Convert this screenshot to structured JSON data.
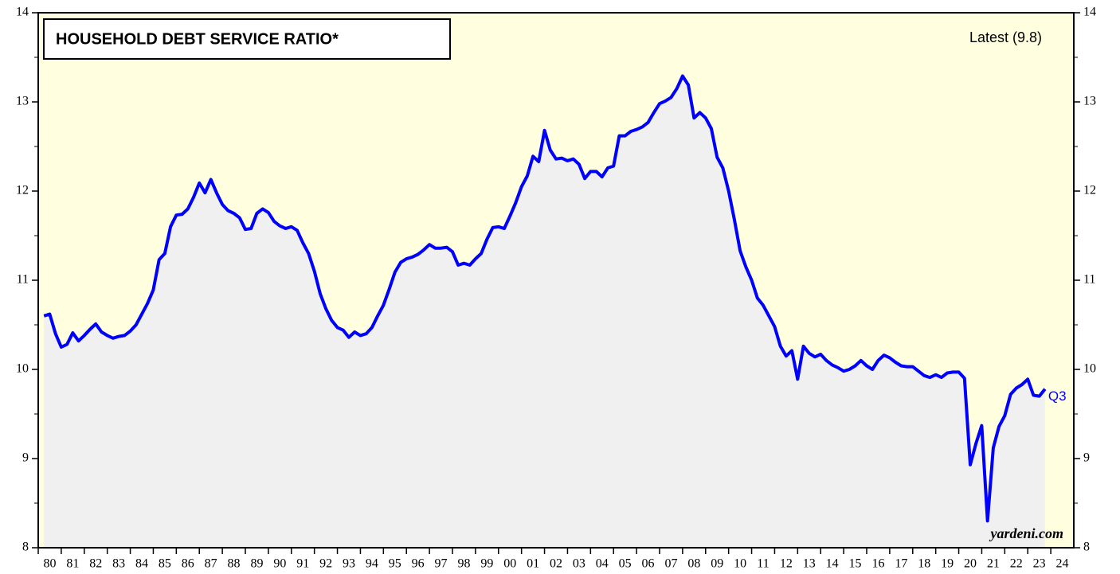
{
  "chart_data": {
    "type": "line",
    "title": "HOUSEHOLD DEBT SERVICE RATIO*",
    "annotations": {
      "latest": "Latest (9.8)",
      "end_label": "Q3",
      "source": "yardeni.com"
    },
    "x": [
      1980.25,
      1980.5,
      1980.75,
      1981,
      1981.25,
      1981.5,
      1981.75,
      1982,
      1982.25,
      1982.5,
      1982.75,
      1983,
      1983.25,
      1983.5,
      1983.75,
      1984,
      1984.25,
      1984.5,
      1984.75,
      1985,
      1985.25,
      1985.5,
      1985.75,
      1986,
      1986.25,
      1986.5,
      1986.75,
      1987,
      1987.25,
      1987.5,
      1987.75,
      1988,
      1988.25,
      1988.5,
      1988.75,
      1989,
      1989.25,
      1989.5,
      1989.75,
      1990,
      1990.25,
      1990.5,
      1990.75,
      1991,
      1991.25,
      1991.5,
      1991.75,
      1992,
      1992.25,
      1992.5,
      1992.75,
      1993,
      1993.25,
      1993.5,
      1993.75,
      1994,
      1994.25,
      1994.5,
      1994.75,
      1995,
      1995.25,
      1995.5,
      1995.75,
      1996,
      1996.25,
      1996.5,
      1996.75,
      1997,
      1997.25,
      1997.5,
      1997.75,
      1998,
      1998.25,
      1998.5,
      1998.75,
      1999,
      1999.25,
      1999.5,
      1999.75,
      2000,
      2000.25,
      2000.5,
      2000.75,
      2001,
      2001.25,
      2001.5,
      2001.75,
      2002,
      2002.25,
      2002.5,
      2002.75,
      2003,
      2003.25,
      2003.5,
      2003.75,
      2004,
      2004.25,
      2004.5,
      2004.75,
      2005,
      2005.25,
      2005.5,
      2005.75,
      2006,
      2006.25,
      2006.5,
      2006.75,
      2007,
      2007.25,
      2007.5,
      2007.75,
      2008,
      2008.25,
      2008.5,
      2008.75,
      2009,
      2009.25,
      2009.5,
      2009.75,
      2010,
      2010.25,
      2010.5,
      2010.75,
      2011,
      2011.25,
      2011.5,
      2011.75,
      2012,
      2012.25,
      2012.5,
      2012.75,
      2013,
      2013.25,
      2013.5,
      2013.75,
      2014,
      2014.25,
      2014.5,
      2014.75,
      2015,
      2015.25,
      2015.5,
      2015.75,
      2016,
      2016.25,
      2016.5,
      2016.75,
      2017,
      2017.25,
      2017.5,
      2017.75,
      2018,
      2018.25,
      2018.5,
      2018.75,
      2019,
      2019.25,
      2019.5,
      2019.75,
      2020,
      2020.25,
      2020.5,
      2020.75,
      2021,
      2021.25,
      2021.5,
      2021.75,
      2022,
      2022.25,
      2022.5,
      2022.75,
      2023,
      2023.25,
      2023.5,
      2023.75
    ],
    "series": [
      {
        "color": "#0000ff",
        "values": [
          10.6,
          10.62,
          10.4,
          10.25,
          10.28,
          10.41,
          10.32,
          10.38,
          10.45,
          10.51,
          10.42,
          10.38,
          10.35,
          10.37,
          10.38,
          10.43,
          10.5,
          10.62,
          10.74,
          10.89,
          11.23,
          11.3,
          11.6,
          11.73,
          11.74,
          11.8,
          11.93,
          12.09,
          11.98,
          12.13,
          11.98,
          11.85,
          11.78,
          11.75,
          11.7,
          11.57,
          11.58,
          11.75,
          11.8,
          11.76,
          11.66,
          11.61,
          11.58,
          11.6,
          11.56,
          11.42,
          11.3,
          11.1,
          10.85,
          10.68,
          10.55,
          10.47,
          10.44,
          10.36,
          10.42,
          10.38,
          10.4,
          10.47,
          10.6,
          10.72,
          10.9,
          11.09,
          11.2,
          11.24,
          11.26,
          11.29,
          11.34,
          11.4,
          11.36,
          11.36,
          11.37,
          11.32,
          11.17,
          11.19,
          11.17,
          11.24,
          11.3,
          11.46,
          11.59,
          11.6,
          11.58,
          11.72,
          11.87,
          12.05,
          12.17,
          12.39,
          12.33,
          12.68,
          12.46,
          12.36,
          12.37,
          12.34,
          12.36,
          12.3,
          12.14,
          12.22,
          12.22,
          12.16,
          12.26,
          12.28,
          12.62,
          12.62,
          12.67,
          12.69,
          12.72,
          12.77,
          12.88,
          12.98,
          13.01,
          13.05,
          13.15,
          13.29,
          13.19,
          12.82,
          12.88,
          12.82,
          12.7,
          12.38,
          12.26,
          12.0,
          11.68,
          11.33,
          11.15,
          11.0,
          10.8,
          10.72,
          10.6,
          10.48,
          10.26,
          10.15,
          10.21,
          9.89,
          10.26,
          10.18,
          10.14,
          10.17,
          10.1,
          10.05,
          10.02,
          9.98,
          10.0,
          10.04,
          10.1,
          10.04,
          10.0,
          10.1,
          10.16,
          10.13,
          10.08,
          10.04,
          10.03,
          10.03,
          9.98,
          9.93,
          9.91,
          9.94,
          9.91,
          9.96,
          9.97,
          9.97,
          9.9,
          8.93,
          9.17,
          9.37,
          8.3,
          9.12,
          9.36,
          9.48,
          9.72,
          9.79,
          9.83,
          9.89,
          9.71,
          9.7,
          9.78
        ]
      }
    ],
    "xlim": [
      1980,
      2025
    ],
    "xticks": [
      {
        "value": 1980,
        "label": "80"
      },
      {
        "value": 1981,
        "label": "81"
      },
      {
        "value": 1982,
        "label": "82"
      },
      {
        "value": 1983,
        "label": "83"
      },
      {
        "value": 1984,
        "label": "84"
      },
      {
        "value": 1985,
        "label": "85"
      },
      {
        "value": 1986,
        "label": "86"
      },
      {
        "value": 1987,
        "label": "87"
      },
      {
        "value": 1988,
        "label": "88"
      },
      {
        "value": 1989,
        "label": "89"
      },
      {
        "value": 1990,
        "label": "90"
      },
      {
        "value": 1991,
        "label": "91"
      },
      {
        "value": 1992,
        "label": "92"
      },
      {
        "value": 1993,
        "label": "93"
      },
      {
        "value": 1994,
        "label": "94"
      },
      {
        "value": 1995,
        "label": "95"
      },
      {
        "value": 1996,
        "label": "96"
      },
      {
        "value": 1997,
        "label": "97"
      },
      {
        "value": 1998,
        "label": "98"
      },
      {
        "value": 1999,
        "label": "99"
      },
      {
        "value": 2000,
        "label": "00"
      },
      {
        "value": 2001,
        "label": "01"
      },
      {
        "value": 2002,
        "label": "02"
      },
      {
        "value": 2003,
        "label": "03"
      },
      {
        "value": 2004,
        "label": "04"
      },
      {
        "value": 2005,
        "label": "05"
      },
      {
        "value": 2006,
        "label": "06"
      },
      {
        "value": 2007,
        "label": "07"
      },
      {
        "value": 2008,
        "label": "08"
      },
      {
        "value": 2009,
        "label": "09"
      },
      {
        "value": 2010,
        "label": "10"
      },
      {
        "value": 2011,
        "label": "11"
      },
      {
        "value": 2012,
        "label": "12"
      },
      {
        "value": 2013,
        "label": "13"
      },
      {
        "value": 2014,
        "label": "14"
      },
      {
        "value": 2015,
        "label": "15"
      },
      {
        "value": 2016,
        "label": "16"
      },
      {
        "value": 2017,
        "label": "17"
      },
      {
        "value": 2018,
        "label": "18"
      },
      {
        "value": 2019,
        "label": "19"
      },
      {
        "value": 2020,
        "label": "20"
      },
      {
        "value": 2021,
        "label": "21"
      },
      {
        "value": 2022,
        "label": "22"
      },
      {
        "value": 2023,
        "label": "23"
      },
      {
        "value": 2024,
        "label": "24"
      }
    ],
    "ylim": [
      8,
      14
    ],
    "yticks": [
      8,
      9,
      10,
      11,
      12,
      13,
      14
    ],
    "yminorticks": [
      8.5,
      9.5,
      10.5,
      11.5,
      12.5,
      13.5
    ],
    "background": "#ffffe0",
    "area_color": "#f0f0f0"
  }
}
